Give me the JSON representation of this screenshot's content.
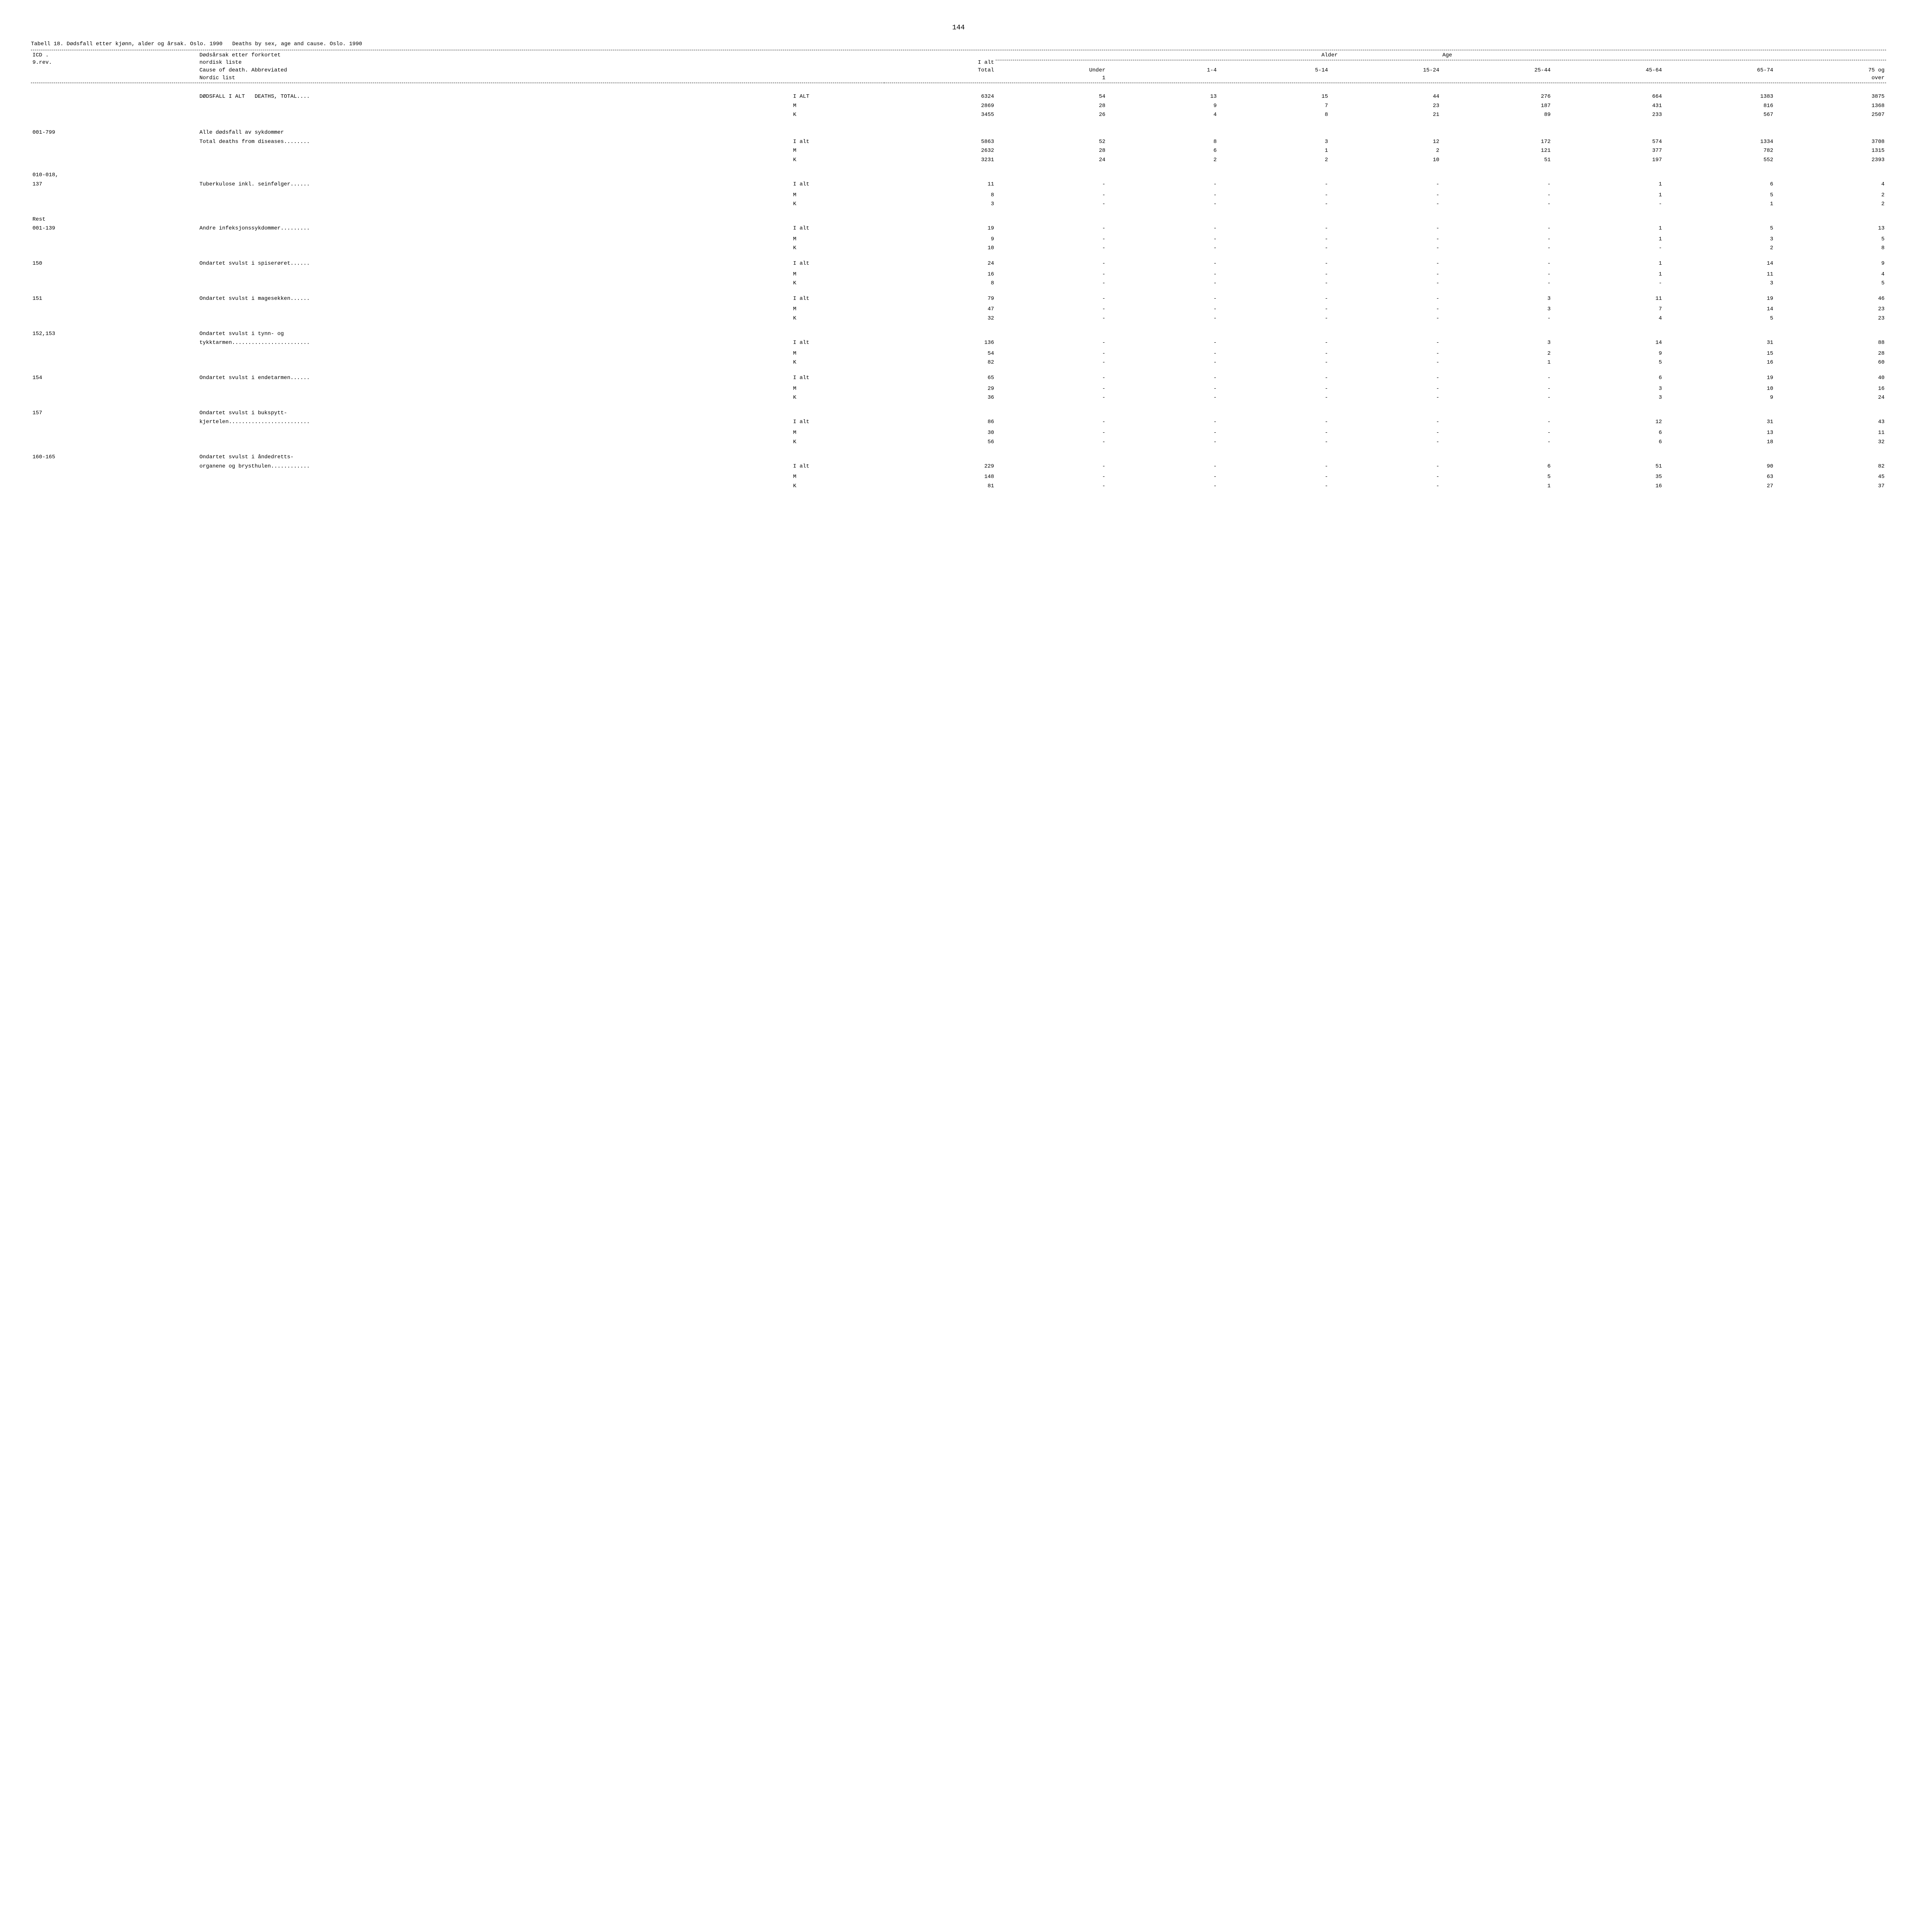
{
  "page_number": "144",
  "title_no": "Tabell 18. Dødsfall etter kjønn, alder og årsak. Oslo. 1990",
  "title_en": "Deaths by sex, age and cause. Oslo. 1990",
  "header": {
    "icd_label1": "ICD  .",
    "icd_label2": "9.rev.",
    "cause_no1": "Dødsårsak etter forkortet",
    "cause_no2": "nordisk liste",
    "cause_en1": "Cause of death. Abbreviated",
    "cause_en2": "Nordic list",
    "total_no": "I alt",
    "total_en": "Total",
    "under1": "Under",
    "one": "1",
    "age_no": "Alder",
    "age_en": "Age",
    "col_1_4": "1-4",
    "col_5_14": "5-14",
    "col_15_24": "15-24",
    "col_25_44": "25-44",
    "col_45_64": "45-64",
    "col_65_74": "65-74",
    "col_75_over": "75 og",
    "over": "over"
  },
  "sex": {
    "m": "M",
    "k": "K",
    "ialt": "I ALT",
    "ialt2": "I alt"
  },
  "groups": [
    {
      "icd": "",
      "cause_lines": [
        "DØDSFALL I ALT   DEATHS, TOTAL...."
      ],
      "rows": [
        {
          "sex": "I ALT",
          "vals": [
            "6324",
            "54",
            "13",
            "15",
            "44",
            "276",
            "664",
            "1383",
            "3875"
          ]
        },
        {
          "sex": "M",
          "vals": [
            "2869",
            "28",
            "9",
            "7",
            "23",
            "187",
            "431",
            "816",
            "1368"
          ]
        },
        {
          "sex": "K",
          "vals": [
            "3455",
            "26",
            "4",
            "8",
            "21",
            "89",
            "233",
            "567",
            "2507"
          ]
        }
      ]
    },
    {
      "icd": "001-799",
      "cause_lines": [
        "Alle dødsfall av sykdommer",
        "Total deaths from diseases........"
      ],
      "rows": [
        {
          "sex": "I alt",
          "vals": [
            "5863",
            "52",
            "8",
            "3",
            "12",
            "172",
            "574",
            "1334",
            "3708"
          ]
        },
        {
          "sex": "M",
          "vals": [
            "2632",
            "28",
            "6",
            "1",
            "2",
            "121",
            "377",
            "782",
            "1315"
          ]
        },
        {
          "sex": "K",
          "vals": [
            "3231",
            "24",
            "2",
            "2",
            "10",
            "51",
            "197",
            "552",
            "2393"
          ]
        }
      ]
    },
    {
      "icd": "010-018,",
      "icd2": "137",
      "cause_lines": [
        "Tuberkulose inkl. seinfølger......"
      ],
      "rows": [
        {
          "sex": "I alt",
          "vals": [
            "11",
            "-",
            "-",
            "-",
            "-",
            "-",
            "1",
            "6",
            "4"
          ]
        },
        {
          "sex": "",
          "vals": []
        },
        {
          "sex": "M",
          "vals": [
            "8",
            "-",
            "-",
            "-",
            "-",
            "-",
            "1",
            "5",
            "2"
          ]
        },
        {
          "sex": "K",
          "vals": [
            "3",
            "-",
            "-",
            "-",
            "-",
            "-",
            "-",
            "1",
            "2"
          ]
        }
      ]
    },
    {
      "icd": "Rest",
      "icd2": "001-139",
      "cause_lines": [
        "Andre infeksjonssykdommer........."
      ],
      "rows": [
        {
          "sex": "I alt",
          "vals": [
            "19",
            "-",
            "-",
            "-",
            "-",
            "-",
            "1",
            "5",
            "13"
          ]
        },
        {
          "sex": "",
          "vals": []
        },
        {
          "sex": "M",
          "vals": [
            "9",
            "-",
            "-",
            "-",
            "-",
            "-",
            "1",
            "3",
            "5"
          ]
        },
        {
          "sex": "K",
          "vals": [
            "10",
            "-",
            "-",
            "-",
            "-",
            "-",
            "-",
            "2",
            "8"
          ]
        }
      ]
    },
    {
      "icd": "150",
      "cause_lines": [
        "Ondartet svulst i spiserøret......"
      ],
      "rows": [
        {
          "sex": "I alt",
          "vals": [
            "24",
            "-",
            "-",
            "-",
            "-",
            "-",
            "1",
            "14",
            "9"
          ]
        },
        {
          "sex": "",
          "vals": []
        },
        {
          "sex": "M",
          "vals": [
            "16",
            "-",
            "-",
            "-",
            "-",
            "-",
            "1",
            "11",
            "4"
          ]
        },
        {
          "sex": "K",
          "vals": [
            "8",
            "-",
            "-",
            "-",
            "-",
            "-",
            "-",
            "3",
            "5"
          ]
        }
      ]
    },
    {
      "icd": "151",
      "cause_lines": [
        "Ondartet svulst i magesekken......"
      ],
      "rows": [
        {
          "sex": "I alt",
          "vals": [
            "79",
            "-",
            "-",
            "-",
            "-",
            "3",
            "11",
            "19",
            "46"
          ]
        },
        {
          "sex": "",
          "vals": []
        },
        {
          "sex": "M",
          "vals": [
            "47",
            "-",
            "-",
            "-",
            "-",
            "3",
            "7",
            "14",
            "23"
          ]
        },
        {
          "sex": "K",
          "vals": [
            "32",
            "-",
            "-",
            "-",
            "-",
            "-",
            "4",
            "5",
            "23"
          ]
        }
      ]
    },
    {
      "icd": "152,153",
      "cause_lines": [
        "Ondartet svulst i tynn- og",
        "tykktarmen........................"
      ],
      "rows": [
        {
          "sex": "I alt",
          "vals": [
            "136",
            "-",
            "-",
            "-",
            "-",
            "3",
            "14",
            "31",
            "88"
          ]
        },
        {
          "sex": "",
          "vals": []
        },
        {
          "sex": "M",
          "vals": [
            "54",
            "-",
            "-",
            "-",
            "-",
            "2",
            "9",
            "15",
            "28"
          ]
        },
        {
          "sex": "K",
          "vals": [
            "82",
            "-",
            "-",
            "-",
            "-",
            "1",
            "5",
            "16",
            "60"
          ]
        }
      ]
    },
    {
      "icd": "154",
      "cause_lines": [
        "Ondartet svulst i endetarmen......"
      ],
      "rows": [
        {
          "sex": "I alt",
          "vals": [
            "65",
            "-",
            "-",
            "-",
            "-",
            "-",
            "6",
            "19",
            "40"
          ]
        },
        {
          "sex": "",
          "vals": []
        },
        {
          "sex": "M",
          "vals": [
            "29",
            "-",
            "-",
            "-",
            "-",
            "-",
            "3",
            "10",
            "16"
          ]
        },
        {
          "sex": "K",
          "vals": [
            "36",
            "-",
            "-",
            "-",
            "-",
            "-",
            "3",
            "9",
            "24"
          ]
        }
      ]
    },
    {
      "icd": "157",
      "cause_lines": [
        "Ondartet svulst i bukspytt-",
        "kjertelen........................."
      ],
      "rows": [
        {
          "sex": "I alt",
          "vals": [
            "86",
            "-",
            "-",
            "-",
            "-",
            "-",
            "12",
            "31",
            "43"
          ]
        },
        {
          "sex": "",
          "vals": []
        },
        {
          "sex": "M",
          "vals": [
            "30",
            "-",
            "-",
            "-",
            "-",
            "-",
            "6",
            "13",
            "11"
          ]
        },
        {
          "sex": "K",
          "vals": [
            "56",
            "-",
            "-",
            "-",
            "-",
            "-",
            "6",
            "18",
            "32"
          ]
        }
      ]
    },
    {
      "icd": "160-165",
      "cause_lines": [
        "Ondartet svulst i åndedretts-",
        "organene og brysthulen............"
      ],
      "rows": [
        {
          "sex": "I alt",
          "vals": [
            "229",
            "-",
            "-",
            "-",
            "-",
            "6",
            "51",
            "90",
            "82"
          ]
        },
        {
          "sex": "",
          "vals": []
        },
        {
          "sex": "M",
          "vals": [
            "148",
            "-",
            "-",
            "-",
            "-",
            "5",
            "35",
            "63",
            "45"
          ]
        },
        {
          "sex": "K",
          "vals": [
            "81",
            "-",
            "-",
            "-",
            "-",
            "1",
            "16",
            "27",
            "37"
          ]
        }
      ]
    }
  ]
}
